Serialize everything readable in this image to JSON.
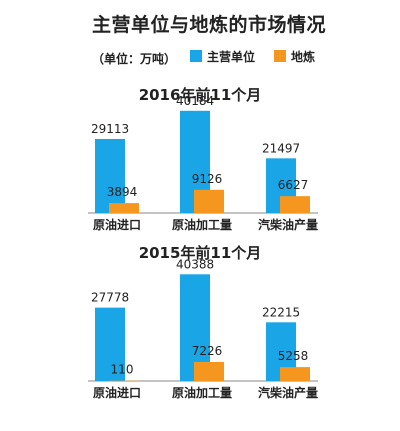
{
  "title": "主营单位与地炼的市场情况",
  "unit_label": "（单位：万吨）",
  "legend": [
    {
      "name": "主营单位",
      "color": "#1aa5e6"
    },
    {
      "name": "地炼",
      "color": "#f5961e"
    }
  ],
  "chart_data": [
    {
      "type": "bar",
      "title": "2016年前11个月",
      "categories": [
        "原油进口",
        "原油加工量",
        "汽柴油产量"
      ],
      "series": [
        {
          "name": "主营单位",
          "values": [
            29113,
            40184,
            21497
          ]
        },
        {
          "name": "地炼",
          "values": [
            3894,
            9126,
            6627
          ]
        }
      ],
      "ylim": [
        0,
        40500
      ]
    },
    {
      "type": "bar",
      "title": "2015年前11个月",
      "categories": [
        "原油进口",
        "原油加工量",
        "汽柴油产量"
      ],
      "series": [
        {
          "name": "主营单位",
          "values": [
            27778,
            40388,
            22215
          ]
        },
        {
          "name": "地炼",
          "values": [
            110,
            7226,
            5258
          ]
        }
      ],
      "ylim": [
        0,
        40500
      ]
    }
  ]
}
